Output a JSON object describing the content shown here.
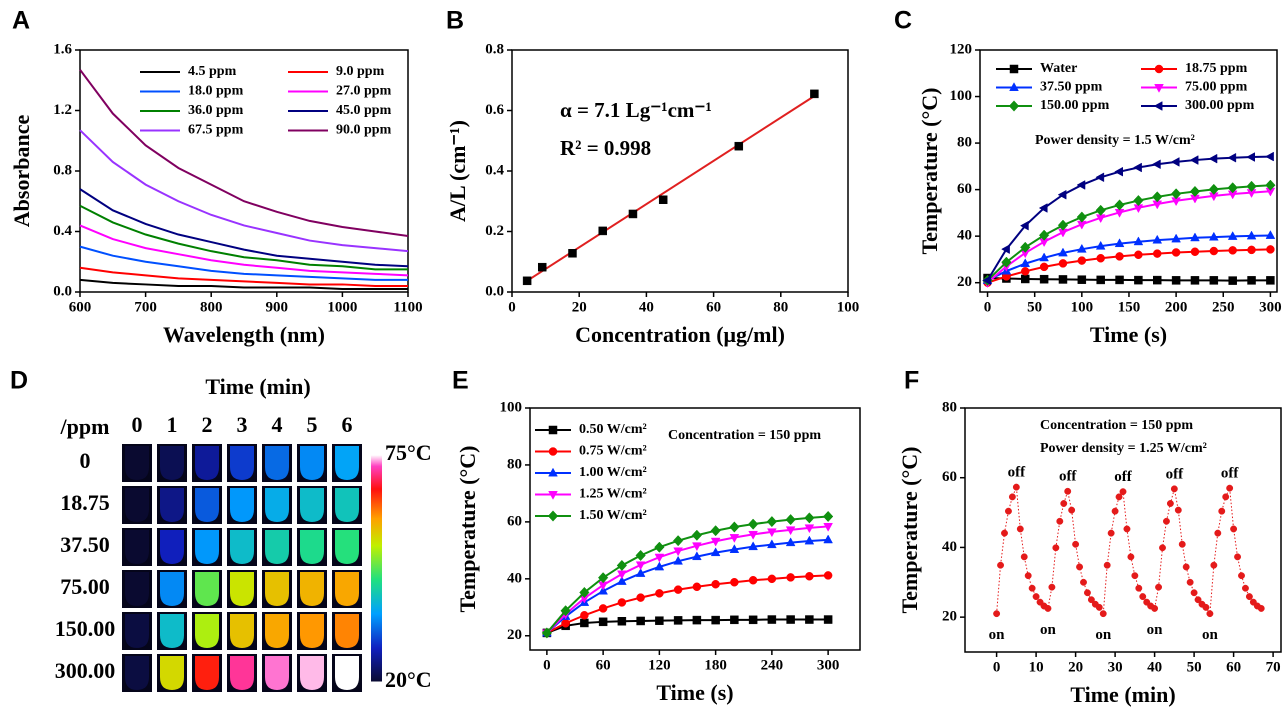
{
  "chart_data": [
    {
      "type": "line",
      "panel_label": "A",
      "xlabel": "Wavelength (nm)",
      "ylabel": "Absorbance",
      "x": [
        600,
        650,
        700,
        750,
        800,
        850,
        900,
        950,
        1000,
        1050,
        1100
      ],
      "xlim": [
        600,
        1100
      ],
      "xticks": [
        600,
        700,
        800,
        900,
        1000,
        1100
      ],
      "ylim": [
        0,
        1.6
      ],
      "yticks": [
        {
          "value": 0,
          "label": "0.0"
        },
        0.4,
        0.8,
        1.2,
        1.6
      ],
      "legend": "upper right",
      "series": [
        {
          "name": "4.5 ppm",
          "color": "#000000",
          "values": [
            0.08,
            0.06,
            0.05,
            0.04,
            0.04,
            0.03,
            0.03,
            0.03,
            0.02,
            0.02,
            0.02
          ]
        },
        {
          "name": "9.0 ppm",
          "color": "#ff0000",
          "values": [
            0.16,
            0.13,
            0.11,
            0.09,
            0.08,
            0.07,
            0.06,
            0.05,
            0.05,
            0.04,
            0.04
          ]
        },
        {
          "name": "18.0 ppm",
          "color": "#0050ff",
          "values": [
            0.3,
            0.24,
            0.2,
            0.17,
            0.14,
            0.12,
            0.11,
            0.1,
            0.09,
            0.08,
            0.08
          ]
        },
        {
          "name": "27.0 ppm",
          "color": "#ff00ff",
          "values": [
            0.44,
            0.35,
            0.29,
            0.25,
            0.21,
            0.18,
            0.16,
            0.14,
            0.13,
            0.12,
            0.11
          ]
        },
        {
          "name": "36.0 ppm",
          "color": "#008000",
          "values": [
            0.57,
            0.46,
            0.38,
            0.32,
            0.27,
            0.23,
            0.21,
            0.18,
            0.17,
            0.15,
            0.15
          ]
        },
        {
          "name": "45.0 ppm",
          "color": "#000080",
          "values": [
            0.68,
            0.54,
            0.45,
            0.38,
            0.33,
            0.28,
            0.24,
            0.22,
            0.2,
            0.18,
            0.17
          ]
        },
        {
          "name": "67.5 ppm",
          "color": "#9933ff",
          "values": [
            1.07,
            0.86,
            0.71,
            0.6,
            0.51,
            0.44,
            0.39,
            0.34,
            0.31,
            0.29,
            0.27
          ]
        },
        {
          "name": "90.0 ppm",
          "color": "#800060",
          "values": [
            1.47,
            1.18,
            0.97,
            0.82,
            0.71,
            0.6,
            0.53,
            0.47,
            0.43,
            0.4,
            0.37
          ]
        }
      ]
    },
    {
      "type": "scatter",
      "panel_label": "B",
      "xlabel": "Concentration (μg/ml)",
      "ylabel": "A/L (cm⁻¹)",
      "x": [
        4.5,
        9,
        18,
        27,
        36,
        45,
        67.5,
        90
      ],
      "xlim": [
        0,
        100
      ],
      "xticks": [
        0,
        20,
        40,
        60,
        80,
        100
      ],
      "ylim": [
        0,
        0.8
      ],
      "yticks": [
        {
          "value": 0,
          "label": "0.0"
        },
        0.2,
        0.4,
        0.6,
        0.8
      ],
      "annotations": [
        "α = 7.1 Lg⁻¹cm⁻¹",
        "R² = 0.998"
      ],
      "series": [
        {
          "color": "#000000",
          "marker": "square",
          "values": [
            0.037,
            0.082,
            0.128,
            0.202,
            0.258,
            0.305,
            0.482,
            0.655
          ]
        }
      ],
      "fit": {
        "color": "#e02020",
        "x": [
          4.5,
          90
        ],
        "values": [
          0.037,
          0.648
        ]
      }
    },
    {
      "type": "line",
      "panel_label": "C",
      "xlabel": "Time (s)",
      "ylabel": "Temperature (°C)",
      "x": [
        0,
        20,
        40,
        60,
        80,
        100,
        120,
        140,
        160,
        180,
        200,
        220,
        240,
        260,
        280,
        300
      ],
      "xlim": [
        -8,
        307
      ],
      "xticks": [
        0,
        50,
        100,
        150,
        200,
        250,
        300
      ],
      "ylim": [
        16,
        120
      ],
      "yticks": [
        20,
        40,
        60,
        80,
        100,
        120
      ],
      "legend": "upper left",
      "annotations": [
        "Power density = 1.5 W/cm²"
      ],
      "series": [
        {
          "name": "Water",
          "color": "#000000",
          "marker": "square",
          "values": [
            22,
            21.8,
            21.6,
            21.5,
            21.4,
            21.3,
            21.2,
            21.2,
            21.1,
            21.1,
            21.0,
            21.0,
            21.0,
            20.9,
            21.0,
            21.0
          ]
        },
        {
          "name": "18.75 ppm",
          "color": "#ff0000",
          "marker": "circle",
          "values": [
            20,
            22.7,
            24.9,
            26.8,
            28.3,
            29.5,
            30.5,
            31.3,
            32.0,
            32.5,
            33.0,
            33.3,
            33.6,
            33.9,
            34.1,
            34.3
          ]
        },
        {
          "name": "37.50 ppm",
          "color": "#0030ff",
          "marker": "triangle-up",
          "values": [
            21,
            25.0,
            28.2,
            30.7,
            32.8,
            34.4,
            35.7,
            36.8,
            37.6,
            38.3,
            38.8,
            39.3,
            39.6,
            39.9,
            40.1,
            40.3
          ]
        },
        {
          "name": "75.00 ppm",
          "color": "#ff00ff",
          "marker": "triangle-down",
          "values": [
            20,
            27.0,
            32.8,
            37.6,
            41.7,
            45.1,
            47.9,
            50.2,
            52.2,
            53.8,
            55.2,
            56.3,
            57.3,
            58.1,
            58.7,
            59.3
          ]
        },
        {
          "name": "150.00 ppm",
          "color": "#109010",
          "marker": "diamond",
          "values": [
            21,
            28.8,
            35.2,
            40.4,
            44.7,
            48.2,
            51.1,
            53.4,
            55.3,
            56.9,
            58.2,
            59.2,
            60.1,
            60.8,
            61.4,
            61.9
          ]
        },
        {
          "name": "300.00 ppm",
          "color": "#000080",
          "marker": "triangle-left",
          "values": [
            21,
            34.4,
            44.5,
            52.1,
            57.8,
            62.0,
            65.3,
            67.7,
            69.5,
            70.9,
            71.9,
            72.7,
            73.3,
            73.7,
            74.0,
            74.2
          ]
        }
      ]
    },
    {
      "type": "heatmap",
      "panel_label": "D",
      "xlabel": "Time (min)",
      "ylabel": "/ppm",
      "x": [
        "0",
        "1",
        "2",
        "3",
        "4",
        "5",
        "6"
      ],
      "y": [
        "0",
        "18.75",
        "37.50",
        "75.00",
        "150.00",
        "300.00"
      ],
      "values": [
        [
          20,
          22,
          26,
          30,
          33,
          35,
          37
        ],
        [
          20,
          25,
          32,
          36,
          38,
          40,
          41
        ],
        [
          20,
          28,
          36,
          40,
          42,
          44,
          45
        ],
        [
          20,
          35,
          48,
          54,
          57,
          58,
          59
        ],
        [
          21,
          40,
          52,
          57,
          59,
          60,
          61
        ],
        [
          21,
          55,
          66,
          71,
          73,
          74,
          75
        ]
      ],
      "clim": [
        20,
        75
      ],
      "colorbar_ticks": [
        {
          "value": 75,
          "label": "75°C"
        },
        {
          "value": 20,
          "label": "20°C"
        }
      ]
    },
    {
      "type": "line",
      "panel_label": "E",
      "xlabel": "Time (s)",
      "ylabel": "Temperature (°C)",
      "x": [
        0,
        20,
        40,
        60,
        80,
        100,
        120,
        140,
        160,
        180,
        200,
        220,
        240,
        260,
        280,
        300
      ],
      "xlim": [
        -18,
        334
      ],
      "xticks": [
        0,
        60,
        120,
        180,
        240,
        300
      ],
      "ylim": [
        15,
        100
      ],
      "yticks": [
        20,
        40,
        60,
        80,
        100
      ],
      "legend": "upper left",
      "annotations": [
        "Concentration = 150 ppm"
      ],
      "series": [
        {
          "name": "0.50 W/cm²",
          "color": "#000000",
          "marker": "square",
          "values": [
            21,
            23.5,
            24.5,
            24.9,
            25.1,
            25.2,
            25.3,
            25.4,
            25.5,
            25.5,
            25.6,
            25.6,
            25.7,
            25.7,
            25.7,
            25.7
          ]
        },
        {
          "name": "0.75 W/cm²",
          "color": "#ff0000",
          "marker": "circle",
          "values": [
            21,
            24.4,
            27.2,
            29.6,
            31.7,
            33.4,
            34.9,
            36.2,
            37.2,
            38.1,
            38.8,
            39.5,
            40.0,
            40.5,
            40.9,
            41.2
          ]
        },
        {
          "name": "1.00 W/cm²",
          "color": "#0030ff",
          "marker": "triangle-up",
          "values": [
            21,
            26.8,
            31.7,
            35.7,
            39.1,
            41.9,
            44.2,
            46.2,
            47.8,
            49.2,
            50.3,
            51.3,
            52.0,
            52.7,
            53.3,
            53.7
          ]
        },
        {
          "name": "1.25 W/cm²",
          "color": "#ff00ff",
          "marker": "triangle-down",
          "values": [
            21,
            27.6,
            33.2,
            37.8,
            41.7,
            44.9,
            47.6,
            49.8,
            51.6,
            53.2,
            54.5,
            55.6,
            56.5,
            57.2,
            57.9,
            58.4
          ]
        },
        {
          "name": "1.50 W/cm²",
          "color": "#109010",
          "marker": "diamond",
          "values": [
            21,
            28.8,
            35.2,
            40.4,
            44.7,
            48.2,
            51.1,
            53.4,
            55.3,
            56.9,
            58.2,
            59.2,
            60.1,
            60.8,
            61.4,
            61.9
          ]
        }
      ]
    },
    {
      "type": "scatter",
      "panel_label": "F",
      "xlabel": "Time (min)",
      "ylabel": "Temperature (°C)",
      "x": [
        0,
        1,
        2,
        3,
        4,
        5,
        6,
        7,
        8,
        9,
        10,
        11,
        12,
        13,
        14,
        15,
        16,
        17,
        18,
        19,
        20,
        21,
        22,
        23,
        24,
        25,
        26,
        27,
        28,
        29,
        30,
        31,
        32,
        33,
        34,
        35,
        36,
        37,
        38,
        39,
        40,
        41,
        42,
        43,
        44,
        45,
        46,
        47,
        48,
        49,
        50,
        51,
        52,
        53,
        54,
        55,
        56,
        57,
        58,
        59,
        60,
        61,
        62,
        63,
        64,
        65,
        66,
        67
      ],
      "xlim": [
        -8,
        72
      ],
      "xticks": [
        0,
        10,
        20,
        30,
        40,
        50,
        60,
        70
      ],
      "ylim": [
        10,
        80
      ],
      "yticks": [
        20,
        40,
        60,
        80
      ],
      "annotations": [
        "Concentration = 150 ppm",
        "Power density = 1.25 W/cm²"
      ],
      "peak_labels": [
        "off",
        "off",
        "off",
        "off",
        "off"
      ],
      "valley_labels": [
        "on",
        "on",
        "on",
        "on",
        "on"
      ],
      "series": [
        {
          "color": "#e41a1a",
          "marker": "circle",
          "linestyle": "dotted",
          "values": [
            21,
            34.9,
            44.1,
            50.4,
            54.5,
            57.3,
            45.3,
            37.3,
            31.9,
            28.3,
            25.9,
            24.3,
            23.2,
            22.5,
            28.6,
            39.9,
            47.5,
            52.6,
            56.1,
            50.7,
            40.9,
            34.4,
            30.0,
            27.0,
            25.0,
            23.7,
            22.8,
            21.0,
            34.9,
            44.1,
            50.4,
            54.5,
            56.0,
            45.3,
            37.3,
            31.9,
            28.3,
            25.9,
            24.3,
            23.2,
            22.5,
            28.6,
            39.9,
            47.5,
            52.6,
            56.8,
            50.7,
            40.9,
            34.4,
            30.0,
            27.0,
            25.0,
            23.7,
            22.8,
            21.0,
            34.9,
            44.1,
            50.4,
            54.5,
            57.0,
            45.3,
            37.3,
            31.9,
            28.3,
            25.9,
            24.3,
            23.2,
            22.5
          ]
        }
      ]
    }
  ]
}
